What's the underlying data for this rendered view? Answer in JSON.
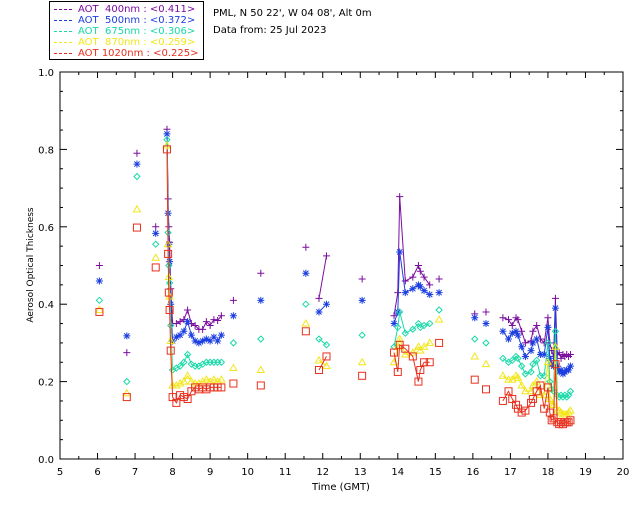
{
  "site": "PML, N 50 22', W 04 08', Alt 0m",
  "date_text": "Data from: 25 Jul 2023",
  "colors": {
    "aot400": "#7b0d9e",
    "aot500": "#1c3fe0",
    "aot675": "#19d9a8",
    "aot870": "#f2e61a",
    "aot1020": "#e8301e"
  },
  "legend": [
    {
      "label": "AOT  400nm : <0.411>",
      "color": "#7b0d9e"
    },
    {
      "label": "AOT  500nm : <0.372>",
      "color": "#1c3fe0"
    },
    {
      "label": "AOT  675nm : <0.306>",
      "color": "#19d9a8"
    },
    {
      "label": "AOT  870nm : <0.259>",
      "color": "#f2e61a"
    },
    {
      "label": "AOT 1020nm : <0.225>",
      "color": "#e8301e"
    }
  ],
  "chart_data": {
    "type": "scatter",
    "title": "",
    "xlabel": "Time (GMT)",
    "ylabel": "Aerosol Optical Thickness",
    "xlim": [
      5,
      20
    ],
    "ylim": [
      0.0,
      1.0
    ],
    "xticks": [
      "5",
      "6",
      "7",
      "8",
      "9",
      "10",
      "11",
      "12",
      "13",
      "14",
      "15",
      "16",
      "17",
      "18",
      "19",
      "20"
    ],
    "yticks": [
      "0.0",
      "0.2",
      "0.4",
      "0.6",
      "0.8",
      "1.0"
    ],
    "series": [
      {
        "name": "AOT  400nm",
        "marker": "plus",
        "color": "#7b0d9e",
        "x": [
          6.05,
          6.78,
          7.05,
          7.55,
          7.85,
          7.88,
          7.9,
          7.92,
          7.95,
          8.0,
          8.1,
          8.2,
          8.3,
          8.4,
          8.5,
          8.6,
          8.7,
          8.8,
          8.9,
          9.0,
          9.1,
          9.2,
          9.3,
          9.62,
          10.35,
          11.55,
          11.9,
          12.1,
          13.05,
          13.9,
          14.0,
          14.05,
          14.2,
          14.4,
          14.55,
          14.6,
          14.7,
          14.85,
          15.1,
          16.05,
          16.35,
          16.8,
          16.95,
          17.05,
          17.15,
          17.2,
          17.3,
          17.4,
          17.55,
          17.6,
          17.7,
          17.8,
          17.9,
          18.0,
          18.05,
          18.1,
          18.15,
          18.2,
          18.25,
          18.3,
          18.35,
          18.4,
          18.45,
          18.5,
          18.55,
          18.6
        ],
        "y": [
          0.5,
          0.275,
          0.79,
          0.6,
          0.852,
          0.672,
          0.6,
          0.56,
          0.44,
          0.35,
          0.35,
          0.355,
          0.36,
          0.385,
          0.35,
          0.345,
          0.335,
          0.335,
          0.355,
          0.345,
          0.36,
          0.358,
          0.37,
          0.41,
          0.48,
          0.547,
          0.415,
          0.525,
          0.465,
          0.37,
          0.43,
          0.678,
          0.46,
          0.47,
          0.5,
          0.485,
          0.47,
          0.45,
          0.465,
          0.375,
          0.38,
          0.365,
          0.36,
          0.345,
          0.365,
          0.36,
          0.33,
          0.3,
          0.305,
          0.33,
          0.345,
          0.31,
          0.3,
          0.365,
          0.3,
          0.28,
          0.265,
          0.415,
          0.27,
          0.275,
          0.26,
          0.27,
          0.265,
          0.27,
          0.265,
          0.27
        ]
      },
      {
        "name": "AOT  500nm",
        "marker": "asterisk",
        "color": "#1c3fe0",
        "x": [
          6.05,
          6.78,
          7.05,
          7.55,
          7.85,
          7.88,
          7.9,
          7.92,
          7.95,
          8.0,
          8.1,
          8.2,
          8.3,
          8.4,
          8.5,
          8.6,
          8.7,
          8.8,
          8.9,
          9.0,
          9.1,
          9.2,
          9.3,
          9.62,
          10.35,
          11.55,
          11.9,
          12.1,
          13.05,
          13.9,
          14.0,
          14.05,
          14.2,
          14.4,
          14.55,
          14.6,
          14.7,
          14.85,
          15.1,
          16.05,
          16.35,
          16.8,
          16.95,
          17.05,
          17.15,
          17.2,
          17.3,
          17.4,
          17.55,
          17.6,
          17.7,
          17.8,
          17.9,
          18.0,
          18.05,
          18.1,
          18.15,
          18.2,
          18.25,
          18.3,
          18.35,
          18.4,
          18.45,
          18.5,
          18.55,
          18.6
        ],
        "y": [
          0.46,
          0.318,
          0.762,
          0.583,
          0.84,
          0.635,
          0.555,
          0.51,
          0.4,
          0.305,
          0.315,
          0.32,
          0.33,
          0.355,
          0.32,
          0.305,
          0.3,
          0.305,
          0.31,
          0.305,
          0.315,
          0.305,
          0.32,
          0.37,
          0.41,
          0.48,
          0.38,
          0.4,
          0.41,
          0.35,
          0.38,
          0.535,
          0.43,
          0.44,
          0.45,
          0.445,
          0.435,
          0.425,
          0.43,
          0.365,
          0.35,
          0.33,
          0.31,
          0.325,
          0.33,
          0.32,
          0.29,
          0.265,
          0.28,
          0.3,
          0.31,
          0.27,
          0.27,
          0.34,
          0.26,
          0.245,
          0.24,
          0.39,
          0.24,
          0.225,
          0.23,
          0.22,
          0.225,
          0.23,
          0.23,
          0.24
        ]
      },
      {
        "name": "AOT  675nm",
        "marker": "diamond",
        "color": "#19d9a8",
        "x": [
          6.05,
          6.78,
          7.05,
          7.55,
          7.85,
          7.88,
          7.9,
          7.92,
          7.95,
          8.0,
          8.1,
          8.2,
          8.3,
          8.4,
          8.5,
          8.6,
          8.7,
          8.8,
          8.9,
          9.0,
          9.1,
          9.2,
          9.3,
          9.62,
          10.35,
          11.55,
          11.9,
          12.1,
          13.05,
          13.9,
          14.0,
          14.05,
          14.2,
          14.4,
          14.55,
          14.6,
          14.7,
          14.85,
          15.1,
          16.05,
          16.35,
          16.8,
          16.95,
          17.05,
          17.15,
          17.2,
          17.3,
          17.4,
          17.55,
          17.6,
          17.7,
          17.8,
          17.9,
          18.0,
          18.05,
          18.1,
          18.15,
          18.2,
          18.25,
          18.3,
          18.35,
          18.4,
          18.45,
          18.5,
          18.55,
          18.6
        ],
        "y": [
          0.41,
          0.2,
          0.73,
          0.555,
          0.825,
          0.585,
          0.5,
          0.455,
          0.345,
          0.23,
          0.235,
          0.24,
          0.25,
          0.27,
          0.245,
          0.24,
          0.24,
          0.245,
          0.25,
          0.25,
          0.25,
          0.25,
          0.25,
          0.3,
          0.31,
          0.4,
          0.31,
          0.295,
          0.32,
          0.29,
          0.34,
          0.38,
          0.325,
          0.335,
          0.35,
          0.34,
          0.345,
          0.35,
          0.385,
          0.31,
          0.3,
          0.26,
          0.25,
          0.255,
          0.265,
          0.26,
          0.24,
          0.22,
          0.225,
          0.245,
          0.255,
          0.215,
          0.215,
          0.3,
          0.2,
          0.18,
          0.175,
          0.33,
          0.165,
          0.16,
          0.165,
          0.16,
          0.165,
          0.16,
          0.165,
          0.175
        ]
      },
      {
        "name": "AOT  870nm",
        "marker": "triangle",
        "color": "#f2e61a",
        "x": [
          6.05,
          6.78,
          7.05,
          7.55,
          7.85,
          7.88,
          7.9,
          7.92,
          7.95,
          8.0,
          8.1,
          8.2,
          8.3,
          8.4,
          8.5,
          8.6,
          8.7,
          8.8,
          8.9,
          9.0,
          9.1,
          9.2,
          9.3,
          9.62,
          10.35,
          11.55,
          11.9,
          12.1,
          13.05,
          13.9,
          14.0,
          14.05,
          14.2,
          14.4,
          14.55,
          14.6,
          14.7,
          14.85,
          15.1,
          16.05,
          16.35,
          16.8,
          16.95,
          17.05,
          17.15,
          17.2,
          17.3,
          17.4,
          17.55,
          17.6,
          17.7,
          17.8,
          17.9,
          18.0,
          18.05,
          18.1,
          18.15,
          18.2,
          18.25,
          18.3,
          18.35,
          18.4,
          18.45,
          18.5,
          18.55,
          18.6
        ],
        "y": [
          0.385,
          0.17,
          0.645,
          0.52,
          0.81,
          0.555,
          0.47,
          0.42,
          0.305,
          0.19,
          0.19,
          0.195,
          0.2,
          0.215,
          0.2,
          0.195,
          0.195,
          0.2,
          0.205,
          0.2,
          0.205,
          0.2,
          0.205,
          0.235,
          0.23,
          0.35,
          0.255,
          0.24,
          0.25,
          0.25,
          0.29,
          0.31,
          0.27,
          0.275,
          0.29,
          0.28,
          0.29,
          0.3,
          0.36,
          0.265,
          0.245,
          0.215,
          0.205,
          0.205,
          0.215,
          0.21,
          0.19,
          0.175,
          0.175,
          0.19,
          0.2,
          0.165,
          0.165,
          0.25,
          0.155,
          0.14,
          0.14,
          0.29,
          0.125,
          0.125,
          0.12,
          0.115,
          0.115,
          0.115,
          0.12,
          0.125
        ]
      },
      {
        "name": "AOT 1020nm",
        "marker": "square",
        "color": "#e8301e",
        "x": [
          6.05,
          6.78,
          7.05,
          7.55,
          7.85,
          7.88,
          7.9,
          7.92,
          7.95,
          8.0,
          8.1,
          8.2,
          8.3,
          8.4,
          8.5,
          8.6,
          8.7,
          8.8,
          8.9,
          9.0,
          9.1,
          9.2,
          9.3,
          9.62,
          10.35,
          11.55,
          11.9,
          12.1,
          13.05,
          13.9,
          14.0,
          14.05,
          14.2,
          14.4,
          14.55,
          14.6,
          14.7,
          14.85,
          15.1,
          16.05,
          16.35,
          16.8,
          16.95,
          17.05,
          17.15,
          17.2,
          17.3,
          17.4,
          17.55,
          17.6,
          17.7,
          17.8,
          17.9,
          18.0,
          18.05,
          18.1,
          18.15,
          18.2,
          18.25,
          18.3,
          18.35,
          18.4,
          18.45,
          18.5,
          18.55,
          18.6
        ],
        "y": [
          0.38,
          0.16,
          0.598,
          0.495,
          0.8,
          0.53,
          0.43,
          0.385,
          0.28,
          0.16,
          0.145,
          0.165,
          0.16,
          0.155,
          0.175,
          0.185,
          0.18,
          0.185,
          0.18,
          0.185,
          0.185,
          0.185,
          0.185,
          0.195,
          0.19,
          0.33,
          0.23,
          0.265,
          0.215,
          0.275,
          0.225,
          0.295,
          0.285,
          0.265,
          0.2,
          0.23,
          0.25,
          0.25,
          0.3,
          0.205,
          0.18,
          0.15,
          0.175,
          0.155,
          0.14,
          0.13,
          0.12,
          0.125,
          0.145,
          0.155,
          0.175,
          0.19,
          0.13,
          0.185,
          0.12,
          0.1,
          0.105,
          0.245,
          0.095,
          0.09,
          0.095,
          0.09,
          0.095,
          0.095,
          0.095,
          0.1
        ]
      }
    ]
  }
}
